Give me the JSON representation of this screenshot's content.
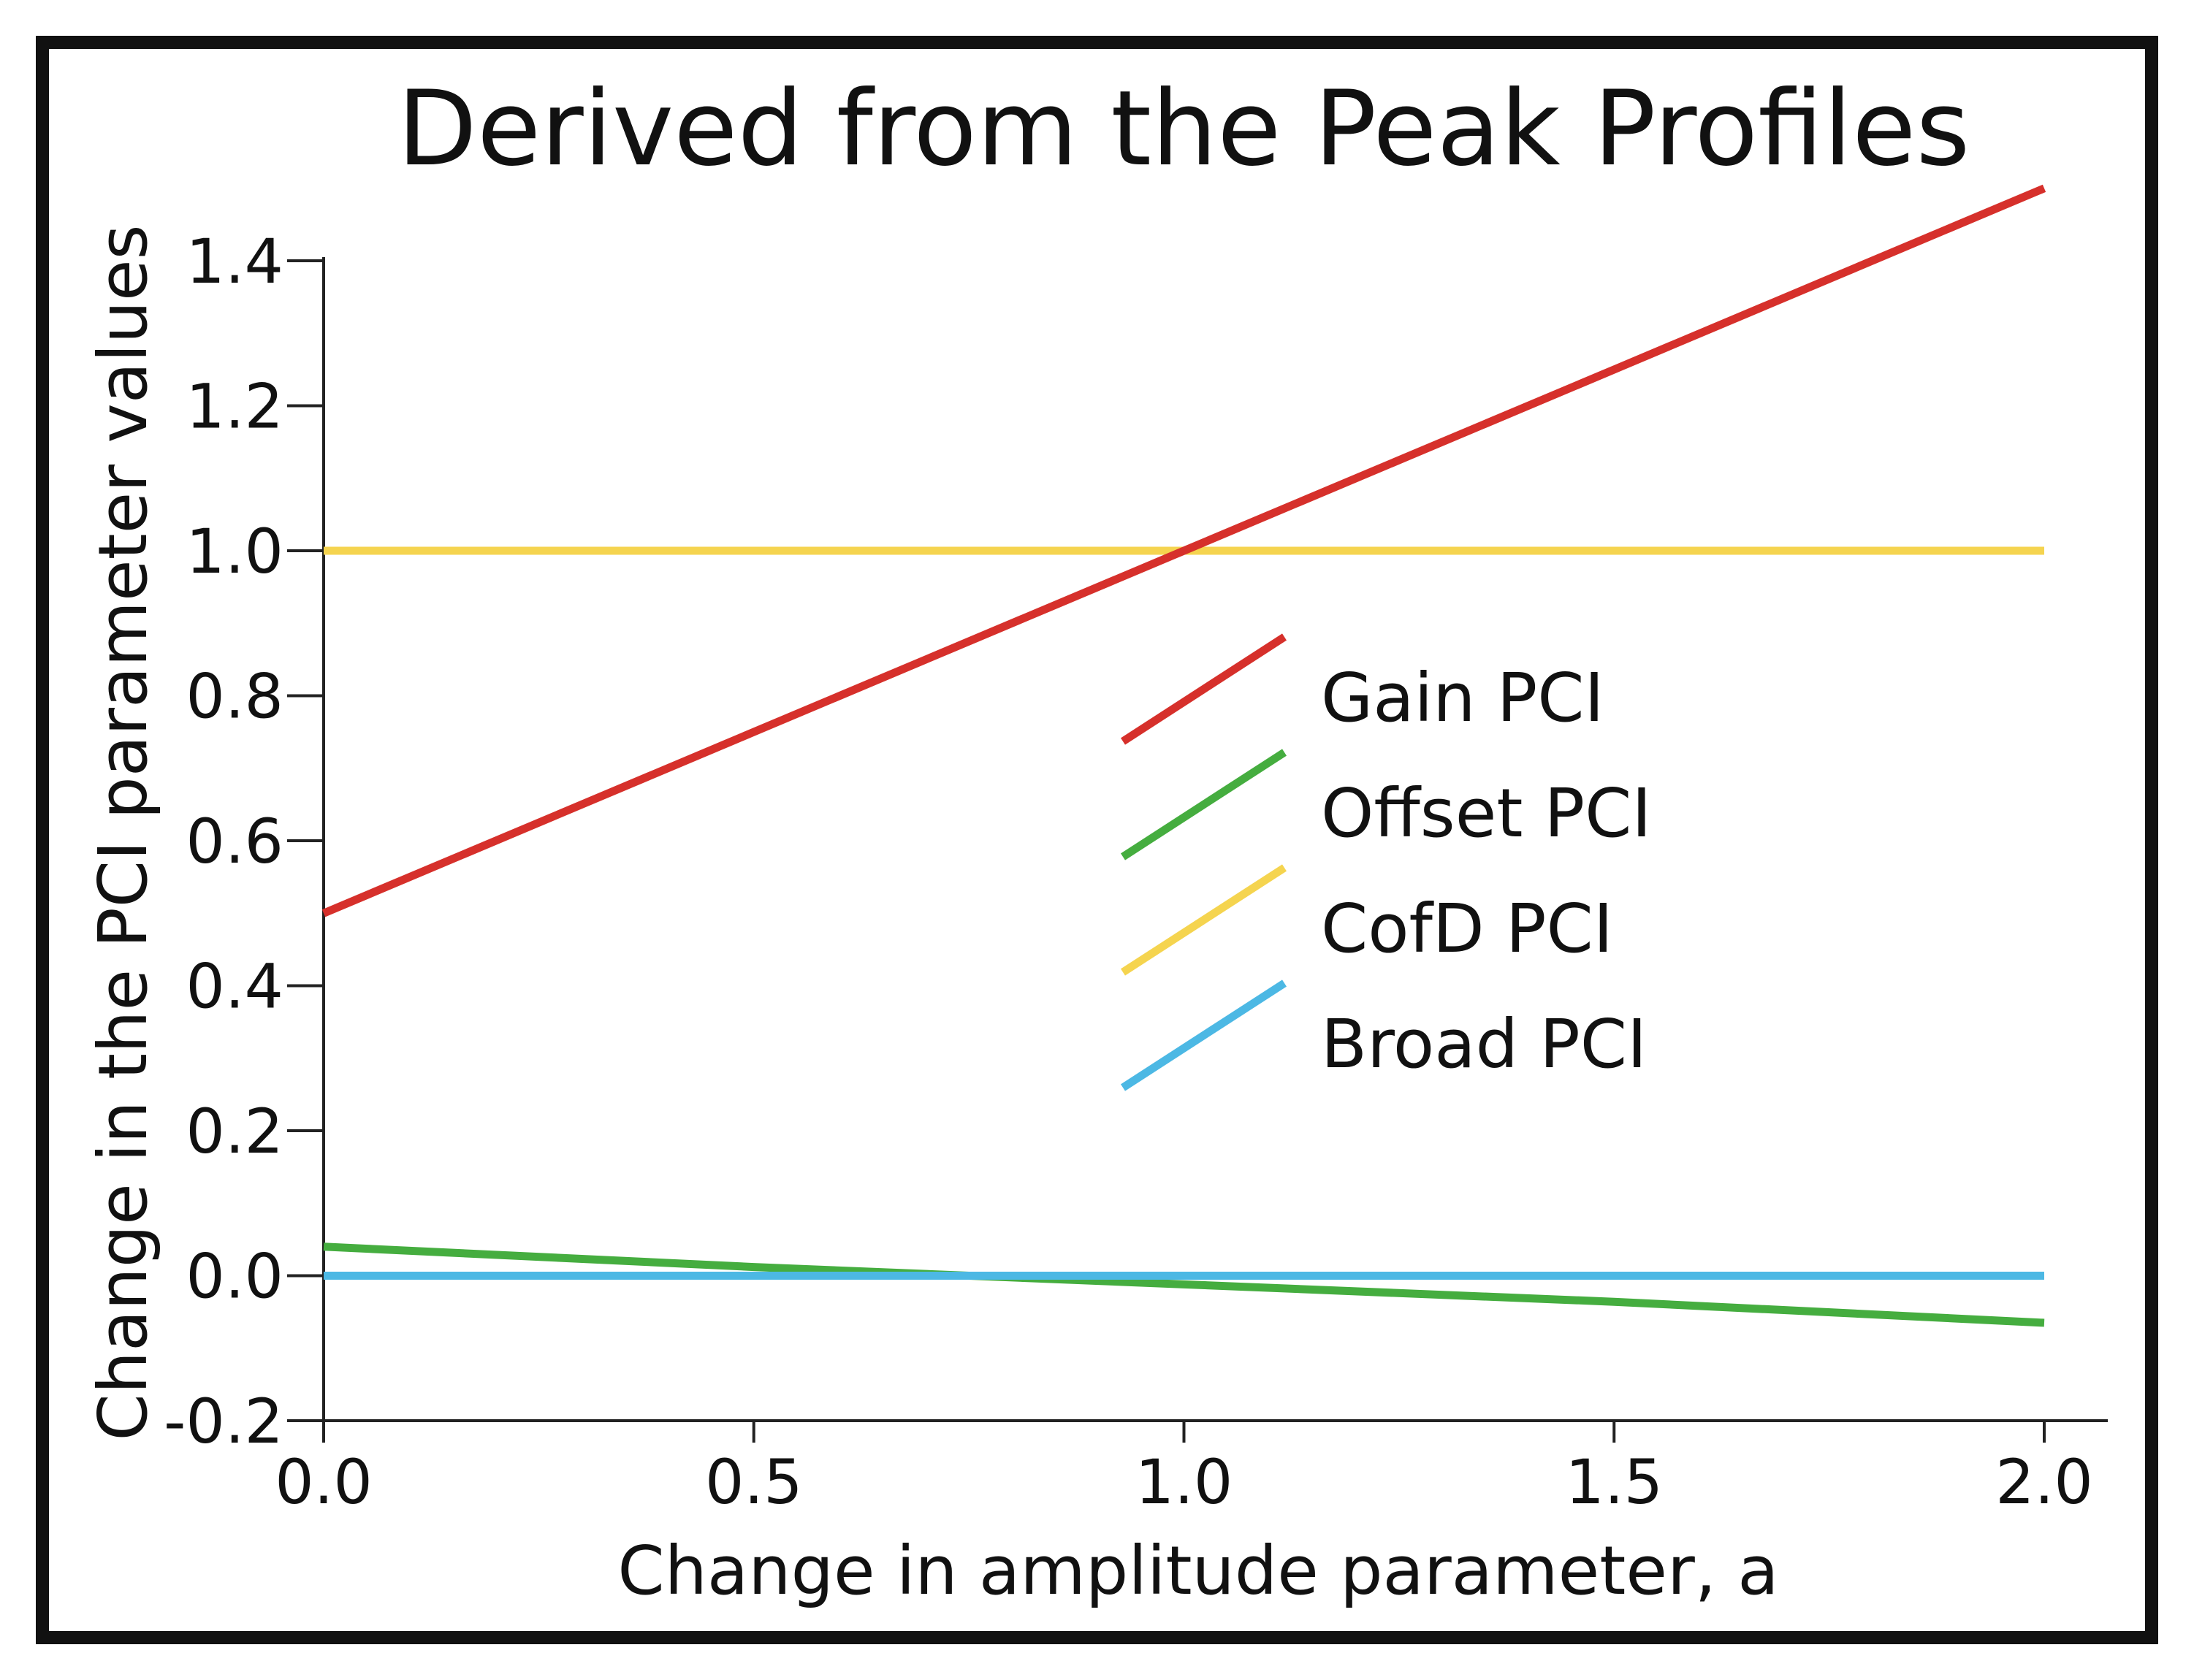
{
  "chart_data": {
    "type": "line",
    "title": "Derived from the Peak Profiles",
    "xlabel": "Change in amplitude parameter, a",
    "ylabel": "Change in the PCI parameter values",
    "xlim": [
      0.0,
      2.0
    ],
    "ylim": [
      -0.2,
      1.4
    ],
    "xticks": [
      {
        "value": 0.0,
        "label": "0.0"
      },
      {
        "value": 0.5,
        "label": "0.5"
      },
      {
        "value": 1.0,
        "label": "1.0"
      },
      {
        "value": 1.5,
        "label": "1.5"
      },
      {
        "value": 2.0,
        "label": "2.0"
      }
    ],
    "yticks": [
      {
        "value": -0.2,
        "label": "-0.2"
      },
      {
        "value": 0.0,
        "label": "0.0"
      },
      {
        "value": 0.2,
        "label": "0.2"
      },
      {
        "value": 0.4,
        "label": "0.4"
      },
      {
        "value": 0.6,
        "label": "0.6"
      },
      {
        "value": 0.8,
        "label": "0.8"
      },
      {
        "value": 1.0,
        "label": "1.0"
      },
      {
        "value": 1.2,
        "label": "1.2"
      },
      {
        "value": 1.4,
        "label": "1.4"
      }
    ],
    "grid": false,
    "legend_position": "center-right",
    "series": [
      {
        "name": "Gain PCI",
        "color": "#d6302b",
        "x": [
          0.0,
          0.5,
          1.0,
          1.5,
          2.0
        ],
        "y": [
          0.5,
          0.75,
          1.0,
          1.25,
          1.5
        ]
      },
      {
        "name": "Offset PCI",
        "color": "#45ad3f",
        "x": [
          0.0,
          0.5,
          1.0,
          1.5,
          2.0
        ],
        "y": [
          0.04,
          0.012,
          -0.012,
          -0.036,
          -0.065
        ]
      },
      {
        "name": "CofD PCI",
        "color": "#f5d44f",
        "x": [
          0.0,
          0.5,
          1.0,
          1.5,
          2.0
        ],
        "y": [
          1.0,
          1.0,
          1.0,
          1.0,
          1.0
        ]
      },
      {
        "name": "Broad PCI",
        "color": "#4cb8e4",
        "x": [
          0.0,
          0.5,
          1.0,
          1.5,
          2.0
        ],
        "y": [
          0.0,
          0.0,
          0.0,
          0.0,
          0.0
        ]
      }
    ]
  }
}
